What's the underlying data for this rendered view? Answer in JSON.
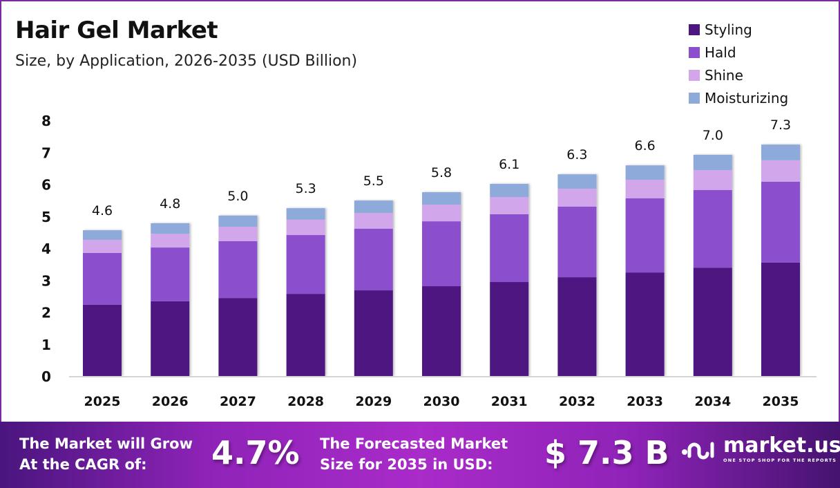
{
  "header": {
    "title": "Hair Gel Market",
    "subtitle": "Size, by Application, 2026-2035 (USD Billion)"
  },
  "legend": [
    {
      "label": "Styling",
      "color": "#4e1680"
    },
    {
      "label": "Hald",
      "color": "#8b4fce"
    },
    {
      "label": "Shine",
      "color": "#d2a6ea"
    },
    {
      "label": "Moisturizing",
      "color": "#8eaadb"
    }
  ],
  "chart_data": {
    "type": "bar",
    "stacked": true,
    "title": "Hair Gel Market",
    "subtitle": "Size, by Application, 2026-2035 (USD Billion)",
    "xlabel": "",
    "ylabel": "",
    "ylim": [
      0,
      8
    ],
    "yticks": [
      "0",
      "1",
      "2",
      "3",
      "4",
      "5",
      "6",
      "7",
      "8"
    ],
    "grid": false,
    "legend_position": "top-right",
    "categories": [
      "2025",
      "2026",
      "2027",
      "2028",
      "2029",
      "2030",
      "2031",
      "2032",
      "2033",
      "2034",
      "2035"
    ],
    "series": [
      {
        "name": "Styling",
        "color": "#4e1680",
        "values": [
          2.23,
          2.34,
          2.44,
          2.57,
          2.68,
          2.81,
          2.94,
          3.09,
          3.24,
          3.39,
          3.55
        ]
      },
      {
        "name": "Hald",
        "color": "#8b4fce",
        "values": [
          1.62,
          1.68,
          1.78,
          1.84,
          1.93,
          2.03,
          2.12,
          2.21,
          2.32,
          2.43,
          2.53
        ]
      },
      {
        "name": "Shine",
        "color": "#d2a6ea",
        "values": [
          0.41,
          0.43,
          0.45,
          0.48,
          0.49,
          0.52,
          0.54,
          0.56,
          0.58,
          0.62,
          0.67
        ]
      },
      {
        "name": "Moisturizing",
        "color": "#8eaadb",
        "values": [
          0.3,
          0.33,
          0.35,
          0.36,
          0.39,
          0.39,
          0.41,
          0.45,
          0.45,
          0.48,
          0.49
        ]
      }
    ],
    "totals": [
      "4.6",
      "4.8",
      "5.0",
      "5.3",
      "5.5",
      "5.8",
      "6.1",
      "6.3",
      "6.6",
      "7.0",
      "7.3"
    ]
  },
  "footer": {
    "cagr_label_line1": "The Market will Grow",
    "cagr_label_line2": "At the CAGR of:",
    "cagr_value": "4.7%",
    "forecast_label_line1": "The Forecasted Market",
    "forecast_label_line2": "Size for 2035 in USD:",
    "forecast_value": "$ 7.3 B",
    "brand_name": "market.us",
    "brand_tagline": "ONE STOP SHOP FOR THE REPORTS"
  }
}
